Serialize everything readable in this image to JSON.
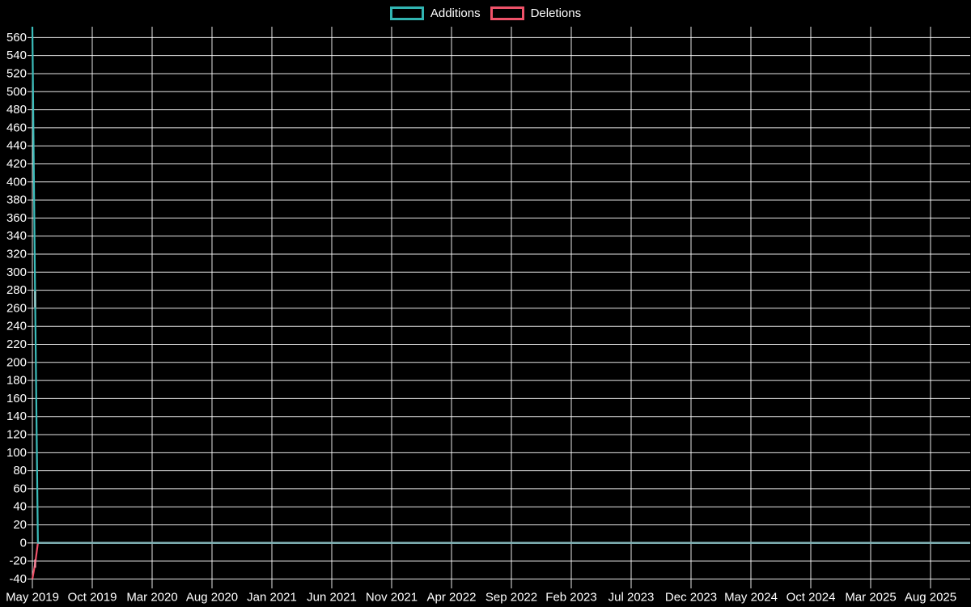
{
  "page": {
    "background_color": "#000000",
    "text_color": "#ffffff",
    "grid_color": "rgba(255,255,255,0.9)"
  },
  "legend": {
    "items": [
      {
        "label": "Additions",
        "color": "#31b5b2"
      },
      {
        "label": "Deletions",
        "color": "#ef5269"
      }
    ]
  },
  "chart_data": {
    "type": "line",
    "title": "",
    "xlabel": "",
    "ylabel": "",
    "legend_position": "top-center",
    "grid": true,
    "x_axis": {
      "unit": "weeks",
      "total_weeks": 340,
      "labels": [
        "May 2019",
        "Oct 2019",
        "Mar 2020",
        "Aug 2020",
        "Jan 2021",
        "Jun 2021",
        "Nov 2021",
        "Apr 2022",
        "Sep 2022",
        "Feb 2023",
        "Jul 2023",
        "Dec 2023",
        "May 2024",
        "Oct 2024",
        "Mar 2025",
        "Aug 2025"
      ]
    },
    "y_axis": {
      "min": -45,
      "max": 572,
      "tick_step": 20,
      "tick_min": -40,
      "tick_max": 560
    },
    "series": [
      {
        "name": "Deletions",
        "color": "#ef5269",
        "marker_color": "#f68da0",
        "keypoints": [
          [
            0,
            -40
          ],
          [
            1,
            -23
          ],
          [
            2,
            0
          ],
          [
            339,
            0
          ]
        ],
        "marker_point": {
          "w": 1,
          "v": -23
        }
      },
      {
        "name": "Additions",
        "color": "#3bbcba",
        "marker_color": "#9edbda",
        "keypoints": [
          [
            0,
            572
          ],
          [
            1,
            270
          ],
          [
            2,
            0
          ],
          [
            339,
            0
          ]
        ],
        "marker_point": {
          "w": 1,
          "v": 270
        }
      }
    ],
    "zero_overlap_line": {
      "color": "#7fb1b4",
      "from_week": 2,
      "value": 0
    }
  }
}
